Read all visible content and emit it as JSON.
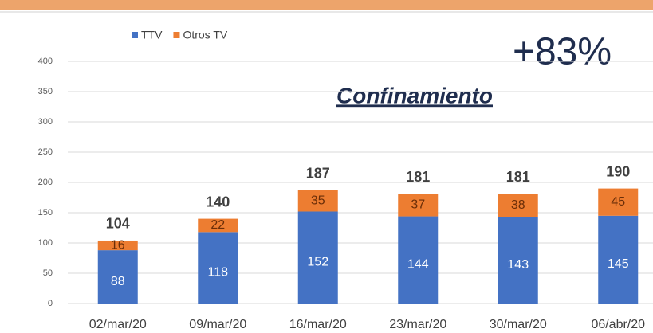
{
  "chart_data": {
    "type": "stacked_bar",
    "categories": [
      "02/mar/20",
      "09/mar/20",
      "16/mar/20",
      "23/mar/20",
      "30/mar/20",
      "06/abr/20"
    ],
    "series": [
      {
        "name": "TTV",
        "color": "#4472c4",
        "values": [
          88,
          118,
          152,
          144,
          143,
          145
        ]
      },
      {
        "name": "Otros TV",
        "color": "#ed7d31",
        "values": [
          16,
          22,
          35,
          37,
          38,
          45
        ]
      }
    ],
    "totals": [
      104,
      140,
      187,
      181,
      181,
      190
    ],
    "ylim": [
      0,
      400
    ],
    "yticks": [
      0,
      50,
      100,
      150,
      200,
      250,
      300,
      350,
      400
    ],
    "grid": true,
    "legend": "top",
    "annotations": [
      "+83%",
      "Confinamiento"
    ]
  }
}
